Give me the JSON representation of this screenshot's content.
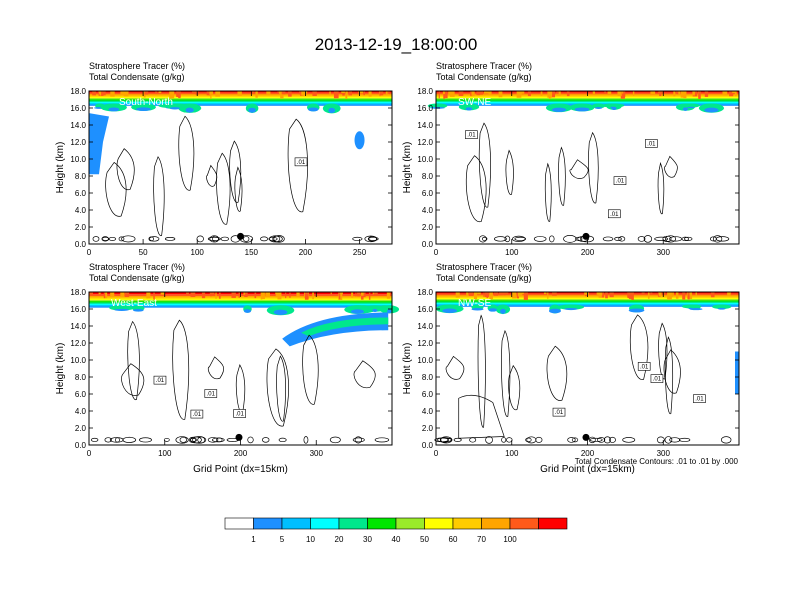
{
  "chart_data": {
    "type": "contour",
    "title": "2013-12-19_18:00:00",
    "colorbar": {
      "levels": [
        "1",
        "5",
        "10",
        "20",
        "30",
        "40",
        "50",
        "60",
        "70",
        "100"
      ],
      "colors": [
        "#ffffff",
        "#1e90ff",
        "#00bfff",
        "#00ffff",
        "#00e88c",
        "#00e600",
        "#9aeb2a",
        "#ffff00",
        "#ffcc00",
        "#ffa500",
        "#ff5a1a",
        "#ff0000"
      ]
    },
    "footnote": "Total Condensate Contours: .01 to .01 by .000",
    "contour_label": ".01",
    "panels": [
      {
        "id": "south-north",
        "subtitle_1": "Stratosphere Tracer   (%)",
        "subtitle_2": "Total Condensate   (g/kg)",
        "cross_section": "South-North",
        "ylabel": "Height (km)",
        "xlabel": "",
        "y_ticks": [
          "0.0",
          "2.0",
          "4.0",
          "6.0",
          "8.0",
          "10.0",
          "12.0",
          "14.0",
          "16.0",
          "18.0"
        ],
        "xlim": [
          0,
          280
        ],
        "x_ticks": [
          0,
          50,
          100,
          150,
          200,
          250
        ],
        "x_tick_labels": [
          "0",
          "50",
          "100",
          "150",
          "200",
          "250"
        ],
        "marker_x": 140,
        "tropopause_km": 16.3
      },
      {
        "id": "sw-ne",
        "subtitle_1": "Stratosphere Tracer   (%)",
        "subtitle_2": "Total Condensate   (g/kg)",
        "cross_section": "SW-NE",
        "ylabel": "Height (km)",
        "xlabel": "",
        "y_ticks": [
          "0.0",
          "2.0",
          "4.0",
          "6.0",
          "8.0",
          "10.0",
          "12.0",
          "14.0",
          "16.0",
          "18.0"
        ],
        "xlim": [
          0,
          400
        ],
        "x_ticks": [
          0,
          100,
          200,
          300
        ],
        "x_tick_labels": [
          "0",
          "100",
          "200",
          "300"
        ],
        "marker_x": 198,
        "tropopause_km": 16.3
      },
      {
        "id": "west-east",
        "subtitle_1": "Stratosphere Tracer   (%)",
        "subtitle_2": "Total Condensate   (g/kg)",
        "cross_section": "West-East",
        "ylabel": "Height (km)",
        "xlabel": "Grid Point (dx=15km)",
        "y_ticks": [
          "0.0",
          "2.0",
          "4.0",
          "6.0",
          "8.0",
          "10.0",
          "12.0",
          "14.0",
          "16.0",
          "18.0"
        ],
        "xlim": [
          0,
          400
        ],
        "x_ticks": [
          0,
          100,
          200,
          300
        ],
        "x_tick_labels": [
          "0",
          "100",
          "200",
          "300"
        ],
        "marker_x": 198,
        "tropopause_km": 16.2
      },
      {
        "id": "nw-se",
        "subtitle_1": "Stratosphere Tracer   (%)",
        "subtitle_2": "Total Condensate   (g/kg)",
        "cross_section": "NW-SE",
        "ylabel": "Height (km)",
        "xlabel": "Grid Point (dx=15km)",
        "y_ticks": [
          "0.0",
          "2.0",
          "4.0",
          "6.0",
          "8.0",
          "10.0",
          "12.0",
          "14.0",
          "16.0",
          "18.0"
        ],
        "xlim": [
          0,
          400
        ],
        "x_ticks": [
          0,
          100,
          200,
          300
        ],
        "x_tick_labels": [
          "0",
          "100",
          "200",
          "300"
        ],
        "marker_x": 198,
        "tropopause_km": 16.3
      }
    ]
  }
}
